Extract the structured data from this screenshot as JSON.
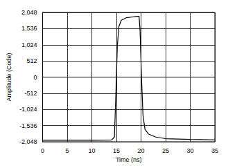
{
  "chart_data": {
    "type": "line",
    "x_label": "Time (ns)",
    "y_label": "Amplitude (Code)",
    "x": [
      0,
      5,
      10,
      14,
      14.6,
      14.9,
      15.2,
      15.5,
      16,
      17,
      18,
      19,
      19.6,
      19.8,
      20.1,
      20.4,
      20.8,
      21.5,
      23,
      25,
      30,
      35
    ],
    "series": [
      {
        "name": "Amplitude",
        "color": "#000000",
        "values": [
          -2000,
          -2000,
          -2000,
          -1995,
          -1900,
          -500,
          1000,
          1600,
          1800,
          1880,
          1900,
          1920,
          1930,
          1500,
          0,
          -1200,
          -1650,
          -1800,
          -1900,
          -1950,
          -1975,
          -1990
        ]
      }
    ],
    "xlim": [
      0,
      35
    ],
    "xticks": [
      0,
      5,
      10,
      15,
      20,
      25,
      30,
      35
    ],
    "ylim": [
      -2048,
      2048
    ],
    "yticks": [
      -2048,
      -1536,
      -1024,
      -512,
      0,
      512,
      1024,
      1536,
      2048
    ],
    "grid": true
  }
}
